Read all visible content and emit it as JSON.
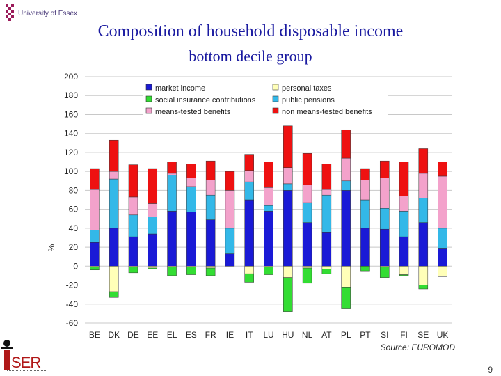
{
  "header": {
    "university": "University of Essex"
  },
  "footer": {
    "page_number": "9"
  },
  "chart_data": {
    "type": "bar",
    "stacked": true,
    "title": "Composition of household disposable income",
    "subtitle": "bottom decile group",
    "ylabel": "%",
    "xlabel": "",
    "source": "Source: EUROMOD",
    "ylim": [
      -60,
      200
    ],
    "yticks": [
      200,
      180,
      160,
      140,
      120,
      100,
      80,
      60,
      40,
      20,
      0,
      -20,
      -40,
      -60
    ],
    "grid": true,
    "legend_position": "top",
    "categories": [
      "BE",
      "DK",
      "DE",
      "EE",
      "EL",
      "ES",
      "FR",
      "IE",
      "IT",
      "LU",
      "HU",
      "NL",
      "AT",
      "PL",
      "PT",
      "SI",
      "FI",
      "SE",
      "UK"
    ],
    "series": [
      {
        "name": "market income",
        "color": "#1a1ad6",
        "values": [
          25,
          40,
          31,
          34,
          58,
          57,
          49,
          13,
          70,
          58,
          80,
          46,
          36,
          80,
          40,
          39,
          31,
          46,
          19
        ]
      },
      {
        "name": "public pensions",
        "color": "#33b8e8",
        "values": [
          13,
          52,
          23,
          18,
          38,
          27,
          26,
          27,
          19,
          6,
          7,
          21,
          39,
          10,
          30,
          22,
          27,
          26,
          21
        ]
      },
      {
        "name": "means-tested benefits",
        "color": "#f3a2cb",
        "values": [
          43,
          8,
          19,
          14,
          2,
          9,
          16,
          40,
          12,
          19,
          17,
          19,
          6,
          24,
          21,
          32,
          16,
          26,
          55
        ]
      },
      {
        "name": "non means-tested benefits",
        "color": "#ee1111",
        "values": [
          22,
          33,
          34,
          37,
          12,
          15,
          20,
          20,
          17,
          27,
          44,
          33,
          27,
          30,
          12,
          18,
          36,
          26,
          15
        ]
      },
      {
        "name": "personal taxes",
        "color": "#ffffb8",
        "values": [
          -1,
          -27,
          -1,
          -2,
          -1,
          -1,
          -2,
          0,
          -8,
          -1,
          -12,
          -2,
          -3,
          -22,
          0,
          -1,
          -9,
          -20,
          -11
        ]
      },
      {
        "name": "social insurance contributions",
        "color": "#33dd33",
        "values": [
          -3,
          -6,
          -6,
          -1,
          -9,
          -8,
          -8,
          0,
          -9,
          -8,
          -36,
          -16,
          -5,
          -23,
          -5,
          -11,
          -1,
          -4,
          0
        ]
      }
    ],
    "legend_order": [
      "market income",
      "personal taxes",
      "social insurance contributions",
      "public pensions",
      "means-tested benefits",
      "non means-tested benefits"
    ]
  }
}
